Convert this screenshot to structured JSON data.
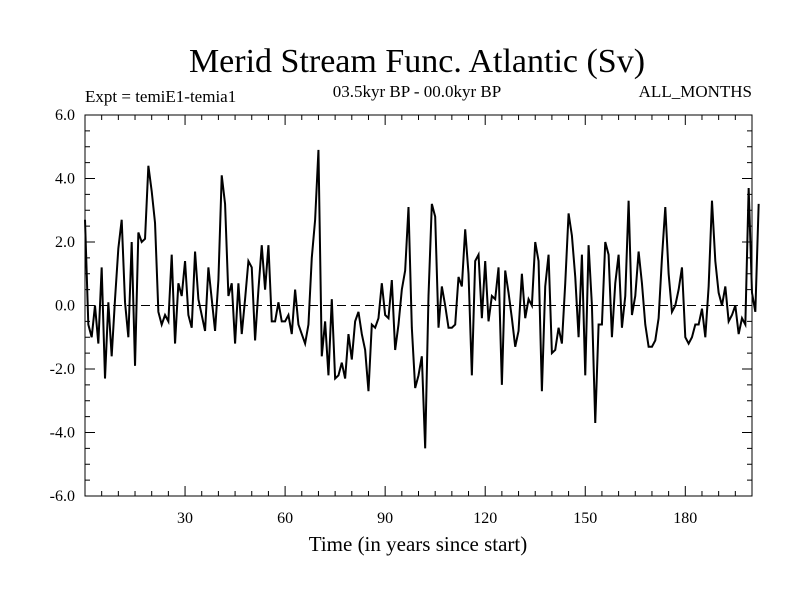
{
  "chart_data": {
    "type": "line",
    "title": "Merid Stream Func. Atlantic (Sv)",
    "subtitle_left": "Expt = temiE1-temia1",
    "subtitle_center": "03.5kyr BP - 00.0kyr BP",
    "subtitle_right": "ALL_MONTHS",
    "xlabel": "Time (in years since start)",
    "ylabel": "",
    "xlim": [
      0,
      200
    ],
    "ylim": [
      -6,
      6
    ],
    "x_ticks": [
      30,
      60,
      90,
      120,
      150,
      180
    ],
    "x_tick_labels": [
      "30",
      "60",
      "90",
      "120",
      "150",
      "180"
    ],
    "y_ticks": [
      -6,
      -4,
      -2,
      0,
      2,
      4,
      6
    ],
    "y_tick_labels": [
      "-6.0",
      "-4.0",
      "-2.0",
      "0.0",
      "2.0",
      "4.0",
      "6.0"
    ],
    "zero_line": true,
    "x_start": 0,
    "x_step": 1,
    "series": [
      {
        "name": "Merid Stream Func.",
        "color": "#000000",
        "values": [
          2.7,
          -0.6,
          -1.0,
          0.0,
          -1.2,
          1.2,
          -2.3,
          0.1,
          -1.6,
          0.2,
          1.8,
          2.7,
          0.1,
          -1.0,
          2.0,
          -1.9,
          2.3,
          2.0,
          2.1,
          4.4,
          3.6,
          2.6,
          -0.2,
          -0.6,
          -0.3,
          -0.5,
          1.6,
          -1.2,
          0.7,
          0.3,
          1.4,
          -0.3,
          -0.7,
          1.7,
          0.2,
          -0.3,
          -0.8,
          1.2,
          0.2,
          -0.8,
          0.8,
          4.1,
          3.2,
          0.3,
          0.7,
          -1.2,
          0.7,
          -0.9,
          0.2,
          1.4,
          1.2,
          -1.1,
          0.5,
          1.9,
          0.5,
          1.9,
          -0.5,
          -0.5,
          0.1,
          -0.5,
          -0.5,
          -0.3,
          -0.9,
          0.5,
          -0.6,
          -0.9,
          -1.2,
          -0.6,
          1.5,
          2.7,
          4.9,
          -1.6,
          -0.5,
          -2.2,
          0.2,
          -2.3,
          -2.2,
          -1.8,
          -2.3,
          -0.9,
          -1.7,
          -0.5,
          -0.2,
          -0.9,
          -1.4,
          -2.7,
          -0.6,
          -0.7,
          -0.4,
          0.7,
          -0.3,
          -0.4,
          0.8,
          -1.4,
          -0.6,
          0.5,
          1.1,
          3.1,
          -0.7,
          -2.6,
          -2.2,
          -1.6,
          -4.5,
          0.3,
          3.2,
          2.8,
          -0.7,
          0.6,
          0.0,
          -0.7,
          -0.7,
          -0.6,
          0.9,
          0.6,
          2.4,
          1.0,
          -2.2,
          1.4,
          1.6,
          -0.4,
          1.4,
          -0.5,
          0.3,
          0.2,
          1.2,
          -2.5,
          1.1,
          0.4,
          -0.4,
          -1.3,
          -0.8,
          1.0,
          -0.4,
          0.2,
          0.0,
          2.0,
          1.4,
          -2.7,
          0.6,
          1.6,
          -1.5,
          -1.4,
          -0.7,
          -1.2,
          0.7,
          2.9,
          2.2,
          0.9,
          -1.0,
          1.6,
          -2.2,
          1.9,
          0.0,
          -3.7,
          -0.6,
          -0.6,
          2.0,
          1.6,
          -1.0,
          0.7,
          1.6,
          -0.7,
          0.3,
          3.3,
          -0.3,
          0.3,
          1.7,
          0.7,
          -0.6,
          -1.3,
          -1.3,
          -1.1,
          -0.4,
          1.5,
          3.1,
          1.0,
          -0.2,
          0.0,
          0.5,
          1.2,
          -1.0,
          -1.2,
          -1.0,
          -0.6,
          -0.6,
          -0.1,
          -1.0,
          0.6,
          3.3,
          1.4,
          0.4,
          0.0,
          0.6,
          -0.5,
          -0.3,
          0.0,
          -0.9,
          -0.4,
          -0.6,
          3.7,
          0.4,
          -0.2,
          3.2
        ]
      }
    ]
  }
}
